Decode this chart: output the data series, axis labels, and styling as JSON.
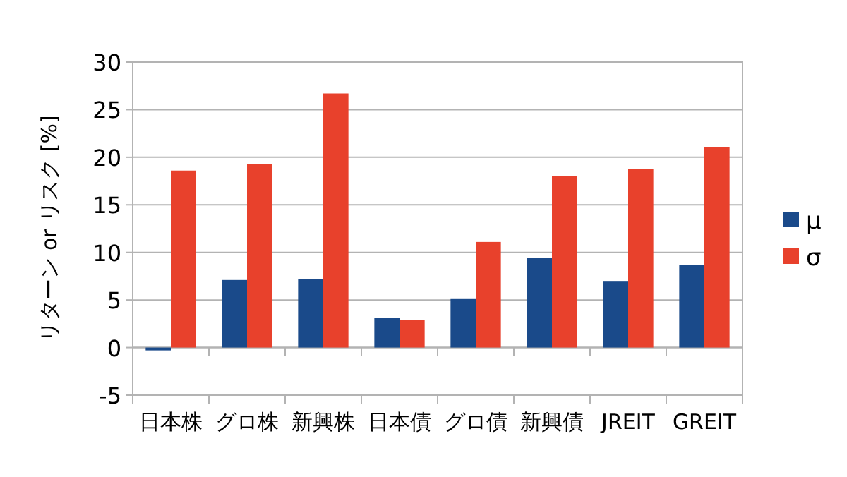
{
  "chart_data": {
    "type": "bar",
    "ylabel": "リターン or リスク [%]",
    "categories": [
      "日本株",
      "グロ株",
      "新興株",
      "日本債",
      "グロ債",
      "新興債",
      "JREIT",
      "GREIT"
    ],
    "series": [
      {
        "name": "μ",
        "color": "#1a4a8a",
        "values": [
          -0.3,
          7.1,
          7.2,
          3.1,
          5.1,
          9.4,
          7.0,
          8.7
        ]
      },
      {
        "name": "σ",
        "color": "#e8412c",
        "values": [
          18.6,
          19.3,
          26.7,
          2.9,
          11.1,
          18.0,
          18.8,
          21.1
        ]
      }
    ],
    "ylim": [
      -5,
      30
    ],
    "yticks": [
      -5,
      0,
      5,
      10,
      15,
      20,
      25,
      30
    ],
    "grid": "y",
    "legend": "right"
  }
}
